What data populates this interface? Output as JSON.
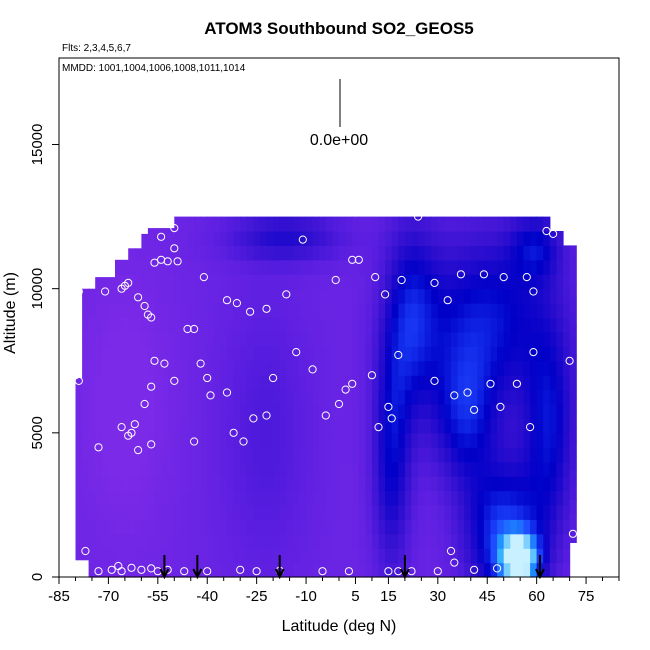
{
  "chart_data": {
    "type": "heatmap",
    "title": "ATOM3 Southbound SO2_GEOS5",
    "subtitle_flights": "Flts: 2,3,4,5,6,7",
    "subtitle_dates": "MMDD: 1001,1004,1006,1008,1011,1014",
    "xlabel": "Latitude (deg N)",
    "ylabel": "Altitude (m)",
    "xlim": [
      -85,
      85
    ],
    "ylim": [
      0,
      18000
    ],
    "x_ticks": [
      -85,
      -70,
      -55,
      -40,
      -25,
      -10,
      5,
      15,
      30,
      45,
      60,
      75
    ],
    "y_ticks": [
      0,
      5000,
      10000,
      15000
    ],
    "scale_label": "0.0e+00",
    "colormap": [
      "#7b2ae8",
      "#5a1ee0",
      "#3210d0",
      "#0000c8",
      "#1e46ff",
      "#1ea8ff",
      "#c8f0ff"
    ],
    "arrow_latitudes": [
      -53,
      -43,
      -18,
      20,
      61
    ],
    "observations": [
      [
        -73,
        200
      ],
      [
        -69,
        250
      ],
      [
        -67,
        380
      ],
      [
        -66,
        200
      ],
      [
        -63,
        320
      ],
      [
        -60,
        250
      ],
      [
        -57,
        300
      ],
      [
        -55,
        200
      ],
      [
        -52,
        250
      ],
      [
        -47,
        200
      ],
      [
        -40,
        200
      ],
      [
        -30,
        250
      ],
      [
        -25,
        200
      ],
      [
        -18,
        220
      ],
      [
        -5,
        200
      ],
      [
        3,
        200
      ],
      [
        15,
        200
      ],
      [
        18,
        200
      ],
      [
        22,
        200
      ],
      [
        30,
        200
      ],
      [
        35,
        500
      ],
      [
        41,
        250
      ],
      [
        48,
        300
      ],
      [
        -77,
        900
      ],
      [
        -79,
        6800
      ],
      [
        -80,
        7000
      ],
      [
        -79,
        9900
      ],
      [
        -73,
        4500
      ],
      [
        -71,
        9900
      ],
      [
        -66,
        10000
      ],
      [
        -65,
        10100
      ],
      [
        -64,
        10200
      ],
      [
        -61,
        9700
      ],
      [
        -59,
        9400
      ],
      [
        -58,
        9100
      ],
      [
        -57,
        9000
      ],
      [
        -56,
        10900
      ],
      [
        -54,
        11000
      ],
      [
        -52,
        10950
      ],
      [
        -50,
        11400
      ],
      [
        -49,
        10950
      ],
      [
        -54,
        11800
      ],
      [
        -50,
        12100
      ],
      [
        -41,
        10400
      ],
      [
        -34,
        9600
      ],
      [
        -31,
        9500
      ],
      [
        -27,
        9200
      ],
      [
        -22,
        9300
      ],
      [
        -16,
        9800
      ],
      [
        -11,
        11700
      ],
      [
        -1,
        10300
      ],
      [
        4,
        11000
      ],
      [
        6,
        11000
      ],
      [
        11,
        10400
      ],
      [
        14,
        9800
      ],
      [
        19,
        10300
      ],
      [
        24,
        12500
      ],
      [
        29,
        10200
      ],
      [
        33,
        9600
      ],
      [
        37,
        10500
      ],
      [
        44,
        10500
      ],
      [
        50,
        10400
      ],
      [
        57,
        10400
      ],
      [
        59,
        9900
      ],
      [
        63,
        12000
      ],
      [
        65,
        11900
      ],
      [
        -66,
        5200
      ],
      [
        -63,
        5000
      ],
      [
        -62,
        5300
      ],
      [
        -59,
        6000
      ],
      [
        -57,
        6600
      ],
      [
        -56,
        7500
      ],
      [
        -53,
        7400
      ],
      [
        -50,
        6800
      ],
      [
        -46,
        8600
      ],
      [
        -44,
        8600
      ],
      [
        -42,
        7400
      ],
      [
        -40,
        6900
      ],
      [
        -39,
        6300
      ],
      [
        -34,
        6400
      ],
      [
        -32,
        5000
      ],
      [
        -26,
        5500
      ],
      [
        -22,
        5600
      ],
      [
        -20,
        6900
      ],
      [
        -13,
        7800
      ],
      [
        -8,
        7200
      ],
      [
        -4,
        5600
      ],
      [
        0,
        6000
      ],
      [
        2,
        6500
      ],
      [
        4,
        6700
      ],
      [
        10,
        7000
      ],
      [
        12,
        5200
      ],
      [
        15,
        5900
      ],
      [
        16,
        5500
      ],
      [
        18,
        7700
      ],
      [
        29,
        6800
      ],
      [
        35,
        6300
      ],
      [
        39,
        6400
      ],
      [
        41,
        5800
      ],
      [
        46,
        6700
      ],
      [
        49,
        5900
      ],
      [
        54,
        6700
      ],
      [
        59,
        7800
      ],
      [
        58,
        5200
      ],
      [
        70,
        7500
      ],
      [
        71,
        1500
      ],
      [
        34,
        900
      ],
      [
        -29,
        4700
      ],
      [
        -44,
        4700
      ],
      [
        -57,
        4600
      ],
      [
        -61,
        4400
      ],
      [
        -64,
        4900
      ]
    ]
  }
}
